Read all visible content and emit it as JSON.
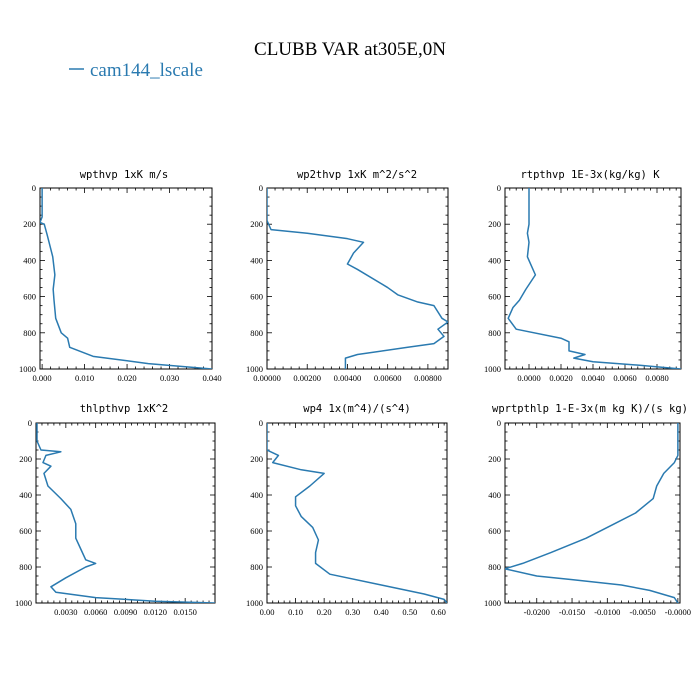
{
  "figure": {
    "title": "CLUBB VAR at305E,0N",
    "legend_label": "cam144_lscale",
    "series_color": "#2a7ab0"
  },
  "chart_data": [
    {
      "type": "line",
      "title": "wpthvp  1xK m/s",
      "series_name": "cam144_lscale",
      "xlim": [
        -0.0005,
        0.04
      ],
      "ylim": [
        1000,
        0
      ],
      "x_ticks": [
        0.0,
        0.01,
        0.02,
        0.03,
        0.04
      ],
      "x_tick_labels": [
        "0.000",
        "0.010",
        "0.020",
        "0.030",
        "0.040"
      ],
      "y_ticks": [
        0,
        200,
        400,
        600,
        800,
        1000
      ],
      "y_tick_labels": [
        "0",
        "200",
        "400",
        "600",
        "800",
        "1000"
      ],
      "points": [
        [
          0.0,
          0
        ],
        [
          0.0,
          160
        ],
        [
          -0.0005,
          190
        ],
        [
          0.0005,
          200
        ],
        [
          0.0012,
          260
        ],
        [
          0.0025,
          380
        ],
        [
          0.003,
          480
        ],
        [
          0.0026,
          560
        ],
        [
          0.0028,
          620
        ],
        [
          0.0032,
          720
        ],
        [
          0.0045,
          800
        ],
        [
          0.006,
          830
        ],
        [
          0.0065,
          880
        ],
        [
          0.012,
          930
        ],
        [
          0.025,
          970
        ],
        [
          0.04,
          1000
        ]
      ]
    },
    {
      "type": "line",
      "title": "wp2thvp  1xK m^2/s^2",
      "series_name": "cam144_lscale",
      "xlim": [
        0,
        0.009
      ],
      "ylim": [
        1000,
        0
      ],
      "x_ticks": [
        0,
        0.002,
        0.004,
        0.006,
        0.008
      ],
      "x_tick_labels": [
        "0.00000",
        "0.00200",
        "0.00400",
        "0.00600",
        "0.00800"
      ],
      "y_ticks": [
        0,
        200,
        400,
        600,
        800,
        1000
      ],
      "y_tick_labels": [
        "0",
        "200",
        "400",
        "600",
        "800",
        "1000"
      ],
      "points": [
        [
          0.0,
          0
        ],
        [
          0.0,
          180
        ],
        [
          0.0002,
          230
        ],
        [
          0.002,
          250
        ],
        [
          0.004,
          280
        ],
        [
          0.0048,
          300
        ],
        [
          0.0043,
          360
        ],
        [
          0.004,
          420
        ],
        [
          0.0045,
          450
        ],
        [
          0.006,
          550
        ],
        [
          0.0065,
          590
        ],
        [
          0.0075,
          630
        ],
        [
          0.0083,
          650
        ],
        [
          0.0087,
          720
        ],
        [
          0.009,
          740
        ],
        [
          0.0085,
          780
        ],
        [
          0.0088,
          820
        ],
        [
          0.0083,
          860
        ],
        [
          0.007,
          880
        ],
        [
          0.0045,
          920
        ],
        [
          0.0039,
          940
        ],
        [
          0.0039,
          1000
        ]
      ]
    },
    {
      "type": "line",
      "title": "rtpthvp  1E-3x(kg/kg) K",
      "series_name": "cam144_lscale",
      "xlim": [
        -0.0015,
        0.0095
      ],
      "ylim": [
        1000,
        0
      ],
      "x_ticks": [
        0.0,
        0.002,
        0.004,
        0.006,
        0.008
      ],
      "x_tick_labels": [
        "0.0000",
        "0.0020",
        "0.0040",
        "0.0060",
        "0.0080"
      ],
      "y_ticks": [
        0,
        200,
        400,
        600,
        800,
        1000
      ],
      "y_tick_labels": [
        "0",
        "200",
        "400",
        "600",
        "800",
        "1000"
      ],
      "points": [
        [
          0.0,
          0
        ],
        [
          0.0,
          200
        ],
        [
          -0.0001,
          250
        ],
        [
          0.0,
          300
        ],
        [
          -0.0001,
          380
        ],
        [
          0.0001,
          420
        ],
        [
          0.0004,
          480
        ],
        [
          -0.0002,
          560
        ],
        [
          -0.0006,
          620
        ],
        [
          -0.001,
          660
        ],
        [
          -0.0013,
          720
        ],
        [
          -0.0008,
          780
        ],
        [
          0.002,
          830
        ],
        [
          0.0025,
          850
        ],
        [
          0.0025,
          900
        ],
        [
          0.0035,
          920
        ],
        [
          0.0028,
          940
        ],
        [
          0.004,
          960
        ],
        [
          0.007,
          980
        ],
        [
          0.0095,
          1000
        ]
      ]
    },
    {
      "type": "line",
      "title": "thlpthvp  1xK^2",
      "series_name": "cam144_lscale",
      "xlim": [
        0.0,
        0.018
      ],
      "ylim": [
        1000,
        0
      ],
      "x_ticks": [
        0.003,
        0.006,
        0.009,
        0.012,
        0.015
      ],
      "x_tick_labels": [
        "0.0030",
        "0.0060",
        "0.0090",
        "0.0120",
        "0.0150"
      ],
      "y_ticks": [
        0,
        200,
        400,
        600,
        800,
        1000
      ],
      "y_tick_labels": [
        "0",
        "200",
        "400",
        "600",
        "800",
        "1000"
      ],
      "points": [
        [
          0.0001,
          0
        ],
        [
          0.0001,
          100
        ],
        [
          0.0005,
          150
        ],
        [
          0.0025,
          160
        ],
        [
          0.001,
          180
        ],
        [
          0.0007,
          220
        ],
        [
          0.0015,
          240
        ],
        [
          0.0008,
          280
        ],
        [
          0.0012,
          350
        ],
        [
          0.0025,
          420
        ],
        [
          0.0035,
          480
        ],
        [
          0.004,
          560
        ],
        [
          0.004,
          640
        ],
        [
          0.0045,
          700
        ],
        [
          0.005,
          760
        ],
        [
          0.006,
          780
        ],
        [
          0.005,
          800
        ],
        [
          0.003,
          860
        ],
        [
          0.0015,
          910
        ],
        [
          0.002,
          940
        ],
        [
          0.006,
          970
        ],
        [
          0.012,
          990
        ],
        [
          0.018,
          1000
        ]
      ]
    },
    {
      "type": "line",
      "title": "wp4  1x(m^4)/(s^4)",
      "series_name": "cam144_lscale",
      "xlim": [
        0.0,
        0.63
      ],
      "ylim": [
        1000,
        0
      ],
      "x_ticks": [
        0.0,
        0.1,
        0.2,
        0.3,
        0.4,
        0.5,
        0.6
      ],
      "x_tick_labels": [
        "0.00",
        "0.10",
        "0.20",
        "0.30",
        "0.40",
        "0.50",
        "0.60"
      ],
      "y_ticks": [
        0,
        200,
        400,
        600,
        800,
        1000
      ],
      "y_tick_labels": [
        "0",
        "200",
        "400",
        "600",
        "800",
        "1000"
      ],
      "points": [
        [
          0.0,
          0
        ],
        [
          0.0,
          150
        ],
        [
          0.04,
          180
        ],
        [
          0.02,
          220
        ],
        [
          0.12,
          260
        ],
        [
          0.2,
          280
        ],
        [
          0.15,
          350
        ],
        [
          0.1,
          410
        ],
        [
          0.1,
          460
        ],
        [
          0.12,
          520
        ],
        [
          0.16,
          580
        ],
        [
          0.18,
          650
        ],
        [
          0.17,
          720
        ],
        [
          0.17,
          780
        ],
        [
          0.22,
          840
        ],
        [
          0.4,
          900
        ],
        [
          0.55,
          950
        ],
        [
          0.62,
          980
        ],
        [
          0.63,
          1000
        ]
      ]
    },
    {
      "type": "line",
      "title": "wprtpthlp  1-E-3x(m kg K)/(s kg)",
      "series_name": "cam144_lscale",
      "xlim": [
        -0.0245,
        0.0003
      ],
      "ylim": [
        1000,
        0
      ],
      "x_ticks": [
        -0.02,
        -0.015,
        -0.01,
        -0.005,
        0.0
      ],
      "x_tick_labels": [
        "-0.0200",
        "-0.0150",
        "-0.0100",
        "-0.0050",
        "-0.0000"
      ],
      "y_ticks": [
        0,
        200,
        400,
        600,
        800,
        1000
      ],
      "y_tick_labels": [
        "0",
        "200",
        "400",
        "600",
        "800",
        "1000"
      ],
      "points": [
        [
          0.0,
          0
        ],
        [
          0.0,
          180
        ],
        [
          -0.0005,
          220
        ],
        [
          -0.002,
          280
        ],
        [
          -0.003,
          350
        ],
        [
          -0.0035,
          420
        ],
        [
          -0.006,
          500
        ],
        [
          -0.009,
          560
        ],
        [
          -0.013,
          640
        ],
        [
          -0.018,
          720
        ],
        [
          -0.022,
          780
        ],
        [
          -0.0245,
          810
        ],
        [
          -0.02,
          850
        ],
        [
          -0.015,
          870
        ],
        [
          -0.008,
          900
        ],
        [
          -0.004,
          930
        ],
        [
          -0.0005,
          970
        ],
        [
          0.0,
          1000
        ]
      ]
    }
  ]
}
